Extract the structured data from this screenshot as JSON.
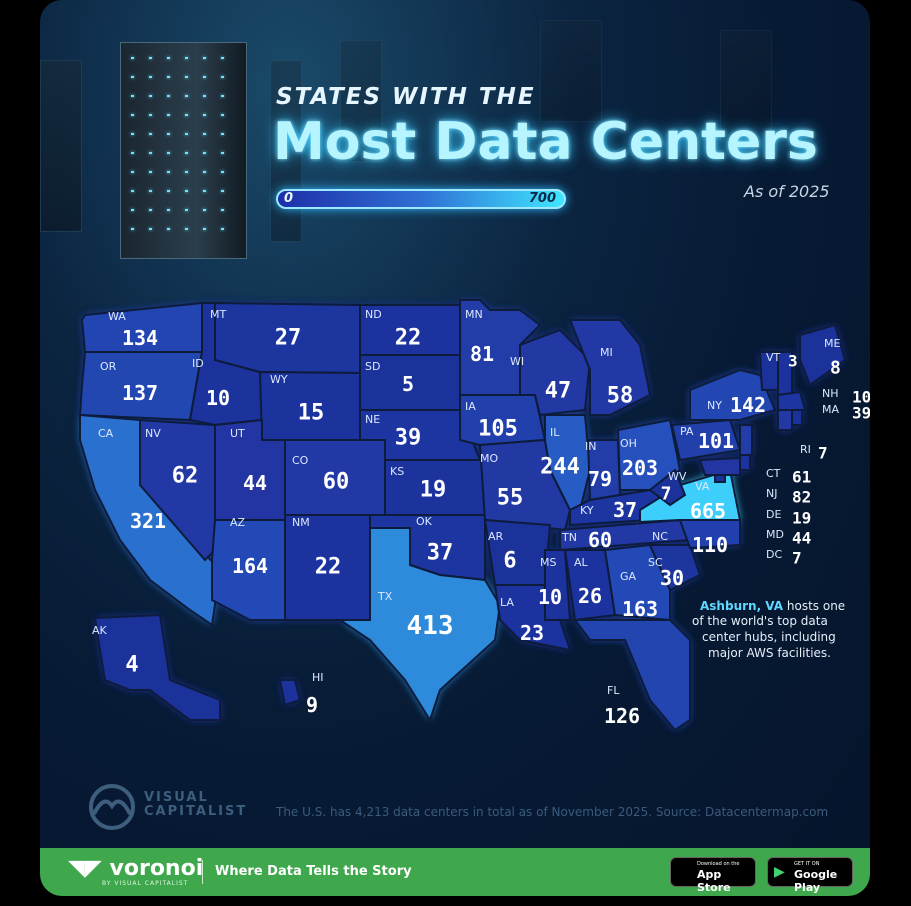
{
  "header": {
    "subtitle": "STATES WITH THE",
    "title": "Most Data Centers",
    "scale_min": "0",
    "scale_max": "700",
    "as_of": "As of 2025"
  },
  "states": [
    {
      "code": "WA",
      "value": "134"
    },
    {
      "code": "OR",
      "value": "137"
    },
    {
      "code": "CA",
      "value": "321"
    },
    {
      "code": "NV",
      "value": "62"
    },
    {
      "code": "ID",
      "value": "10"
    },
    {
      "code": "MT",
      "value": "27"
    },
    {
      "code": "WY",
      "value": "15"
    },
    {
      "code": "UT",
      "value": "44"
    },
    {
      "code": "AZ",
      "value": "164"
    },
    {
      "code": "CO",
      "value": "60"
    },
    {
      "code": "NM",
      "value": "22"
    },
    {
      "code": "ND",
      "value": "22"
    },
    {
      "code": "SD",
      "value": "5"
    },
    {
      "code": "NE",
      "value": "39"
    },
    {
      "code": "KS",
      "value": "19"
    },
    {
      "code": "OK",
      "value": "37"
    },
    {
      "code": "TX",
      "value": "413"
    },
    {
      "code": "MN",
      "value": "81"
    },
    {
      "code": "IA",
      "value": "105"
    },
    {
      "code": "MO",
      "value": "55"
    },
    {
      "code": "AR",
      "value": "6"
    },
    {
      "code": "LA",
      "value": "23"
    },
    {
      "code": "WI",
      "value": "47"
    },
    {
      "code": "IL",
      "value": "244"
    },
    {
      "code": "MI",
      "value": "58"
    },
    {
      "code": "IN",
      "value": "79"
    },
    {
      "code": "OH",
      "value": "203"
    },
    {
      "code": "KY",
      "value": "37"
    },
    {
      "code": "TN",
      "value": "60"
    },
    {
      "code": "MS",
      "value": "10"
    },
    {
      "code": "AL",
      "value": "26"
    },
    {
      "code": "GA",
      "value": "163"
    },
    {
      "code": "FL",
      "value": "126"
    },
    {
      "code": "SC",
      "value": "30"
    },
    {
      "code": "NC",
      "value": "110"
    },
    {
      "code": "VA",
      "value": "665"
    },
    {
      "code": "WV",
      "value": "7"
    },
    {
      "code": "PA",
      "value": "101"
    },
    {
      "code": "NY",
      "value": "142"
    },
    {
      "code": "VT",
      "value": "3"
    },
    {
      "code": "ME",
      "value": "8"
    },
    {
      "code": "NH",
      "value": "10"
    },
    {
      "code": "MA",
      "value": "39"
    },
    {
      "code": "RI",
      "value": "7"
    },
    {
      "code": "CT",
      "value": "61"
    },
    {
      "code": "NJ",
      "value": "82"
    },
    {
      "code": "DE",
      "value": "19"
    },
    {
      "code": "MD",
      "value": "44"
    },
    {
      "code": "DC",
      "value": "7"
    },
    {
      "code": "AK",
      "value": "4"
    },
    {
      "code": "HI",
      "value": "9"
    }
  ],
  "annotation": {
    "highlight": "Ashburn, VA",
    "line1": " hosts one",
    "line2": "of the world's top data",
    "line3": "center hubs, including",
    "line4": "major AWS facilities."
  },
  "footer": {
    "brand_line1": "VISUAL",
    "brand_line2": "CAPITALIST",
    "note": "The U.S. has 4,213 data centers in total as of November 2025. Source: Datacentermap.com"
  },
  "bottom_bar": {
    "logo": "voronoi",
    "logo_sub": "BY VISUAL CAPITALIST",
    "tagline": "Where Data Tells the Story",
    "appstore_small": "Download on the",
    "appstore_big": "App Store",
    "googleplay_small": "GET IT ON",
    "googleplay_big": "Google Play"
  },
  "colors": {
    "low": "#1e2f9a",
    "mid": "#2a5fc8",
    "high": "#3fd8ff",
    "bar_green": "#3fa84c"
  }
}
